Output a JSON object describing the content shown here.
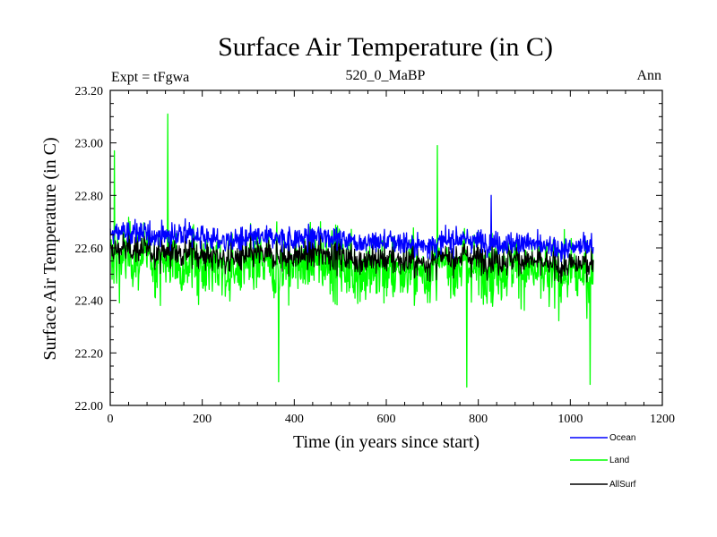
{
  "chart_data": {
    "type": "line",
    "title": "Surface Air Temperature (in C)",
    "subtitle_left": "Expt = tFgwa",
    "subtitle_center": "520_0_MaBP",
    "subtitle_right": "Ann",
    "xlabel": "Time (in years since start)",
    "ylabel": "Surface Air Temperature (in C)",
    "xlim": [
      0,
      1200
    ],
    "ylim": [
      22.0,
      23.2
    ],
    "x_ticks": [
      0,
      200,
      400,
      600,
      800,
      1000,
      1200
    ],
    "x_tick_labels": [
      "0",
      "200",
      "400",
      "600",
      "800",
      "1000",
      "1200"
    ],
    "y_ticks": [
      22.0,
      22.2,
      22.4,
      22.6,
      22.8,
      23.0,
      23.2
    ],
    "y_tick_labels": [
      "22.00",
      "22.20",
      "22.40",
      "22.60",
      "22.80",
      "23.00",
      "23.20"
    ],
    "x_range_of_series": [
      0,
      1050
    ],
    "series": [
      {
        "name": "Land",
        "color": "#00ff00",
        "mean": 22.55,
        "amplitude": 0.17,
        "peak": [
          125,
          23.11
        ],
        "minimum": [
          775,
          22.07
        ]
      },
      {
        "name": "AllSurf",
        "color": "#000000",
        "mean": 22.61,
        "amplitude": 0.06
      },
      {
        "name": "Ocean",
        "color": "#0000ff",
        "mean": 22.65,
        "amplitude": 0.06,
        "peak": [
          828,
          22.8
        ]
      }
    ],
    "legend": [
      {
        "label": "Ocean",
        "color": "#0000ff"
      },
      {
        "label": "Land",
        "color": "#00ff00"
      },
      {
        "label": "AllSurf",
        "color": "#000000"
      }
    ]
  }
}
